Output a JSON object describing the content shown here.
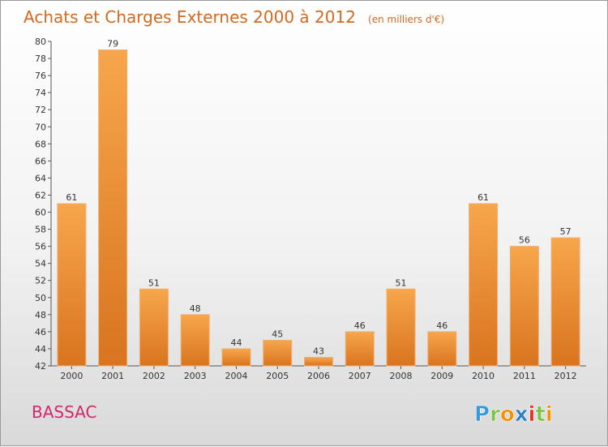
{
  "chart_data": {
    "type": "bar",
    "title": "Achats et Charges Externes 2000 à 2012",
    "unit_note": "(en milliers d'€)",
    "categories": [
      "2000",
      "2001",
      "2002",
      "2003",
      "2004",
      "2005",
      "2006",
      "2007",
      "2008",
      "2009",
      "2010",
      "2011",
      "2012"
    ],
    "values": [
      61,
      79,
      51,
      48,
      44,
      45,
      43,
      46,
      51,
      46,
      61,
      56,
      57
    ],
    "ylim": [
      42,
      80
    ],
    "yticks": [
      42,
      44,
      46,
      48,
      50,
      52,
      54,
      56,
      58,
      60,
      62,
      64,
      66,
      68,
      70,
      72,
      74,
      76,
      78,
      80
    ],
    "grid": false,
    "legend": "none",
    "bar_color": "#e8872e"
  },
  "footer": {
    "town": "BASSAC",
    "brand": "Proxiti"
  },
  "colors": {
    "title": "#d2691e",
    "town": "#d3276b",
    "brand_p": "#3a9ad9",
    "brand_r": "#7cc242",
    "brand_o": "#f39200",
    "brand_x": "#2e7fc0",
    "brand_i": "#e5332a",
    "brand_t": "#7cc242",
    "brand_i2": "#f39200"
  }
}
